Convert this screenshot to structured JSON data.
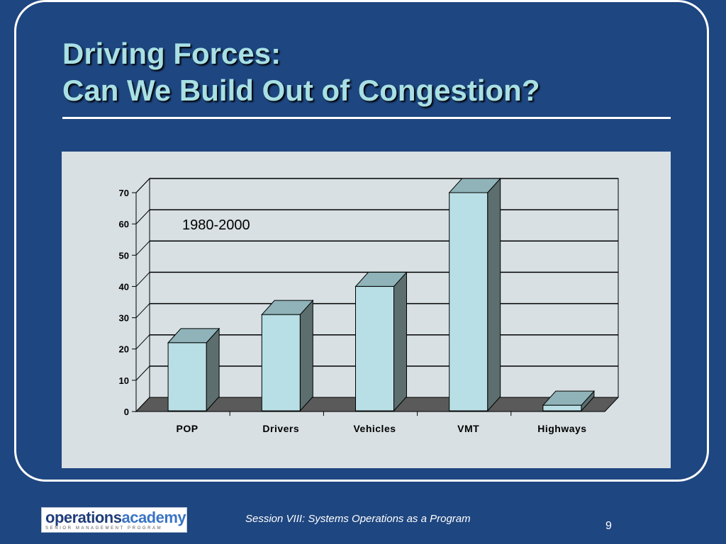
{
  "slide": {
    "title_line1": "Driving Forces:",
    "title_line2": "Can We Build Out of Congestion?",
    "footer": "Session VIII: Systems Operations as a Program",
    "page_number": "9"
  },
  "logo": {
    "part1": "operations",
    "part2": "academy",
    "tagline": "SENIOR MANAGEMENT PROGRAM"
  },
  "colors": {
    "background": "#1e4680",
    "title": "#a8e0e4",
    "bar_front": "#b8dfe5",
    "bar_top": "#8fb3b8",
    "bar_side": "#5c6e6e",
    "floor": "#5a5a5a",
    "panel": "#d8e0e3"
  },
  "chart_data": {
    "type": "bar",
    "annotation": "1980-2000",
    "categories": [
      "POP",
      "Drivers",
      "Vehicles",
      "VMT",
      "Highways"
    ],
    "values": [
      22,
      31,
      40,
      70,
      2
    ],
    "ylim": [
      0,
      70
    ],
    "yticks": [
      "0",
      "10",
      "20",
      "30",
      "40",
      "50",
      "60",
      "70"
    ],
    "grid": true,
    "style": "3d"
  }
}
